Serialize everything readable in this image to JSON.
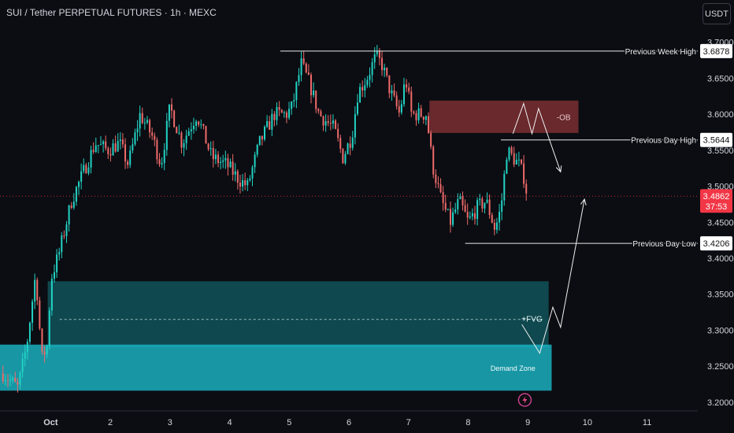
{
  "header": {
    "title": "SUI / Tether PERPETUAL FUTURES · 1h · MEXC",
    "currency": "USDT"
  },
  "colors": {
    "background": "#0b0d12",
    "up": "#22d3c5",
    "down": "#ef6a6a",
    "axis_text": "#d1d4dc",
    "ob_zone": "#7a2f33",
    "fvg_zone": "#147a80",
    "demand_zone": "#1bb5c4",
    "last_price": "#f23645"
  },
  "chart_data": {
    "type": "candlestick",
    "title": "",
    "x_ticks": [
      {
        "label": "Oct",
        "day": 1
      },
      {
        "label": "2",
        "day": 2
      },
      {
        "label": "3",
        "day": 3
      },
      {
        "label": "4",
        "day": 4
      },
      {
        "label": "5",
        "day": 5
      },
      {
        "label": "6",
        "day": 6
      },
      {
        "label": "7",
        "day": 7
      },
      {
        "label": "8",
        "day": 8
      },
      {
        "label": "9",
        "day": 9
      },
      {
        "label": "10",
        "day": 10
      },
      {
        "label": "11",
        "day": 11
      }
    ],
    "y_ticks": [
      "3.7000",
      "3.6500",
      "3.6000",
      "3.5500",
      "3.5000",
      "3.4500",
      "3.4000",
      "3.3500",
      "3.3000",
      "3.2500",
      "3.2000"
    ],
    "ylim": [
      3.19,
      3.715
    ],
    "xlim": [
      0.15,
      11.85
    ],
    "price_path": [
      [
        0.2,
        3.24
      ],
      [
        0.45,
        3.22
      ],
      [
        0.6,
        3.28
      ],
      [
        0.75,
        3.38
      ],
      [
        0.85,
        3.26
      ],
      [
        0.95,
        3.28
      ],
      [
        1.0,
        3.37
      ],
      [
        1.15,
        3.41
      ],
      [
        1.35,
        3.48
      ],
      [
        1.55,
        3.52
      ],
      [
        1.75,
        3.56
      ],
      [
        1.95,
        3.55
      ],
      [
        2.15,
        3.56
      ],
      [
        2.3,
        3.53
      ],
      [
        2.5,
        3.6
      ],
      [
        2.7,
        3.57
      ],
      [
        2.85,
        3.53
      ],
      [
        3.0,
        3.61
      ],
      [
        3.2,
        3.56
      ],
      [
        3.45,
        3.6
      ],
      [
        3.7,
        3.54
      ],
      [
        3.95,
        3.53
      ],
      [
        4.15,
        3.51
      ],
      [
        4.3,
        3.5
      ],
      [
        4.5,
        3.56
      ],
      [
        4.75,
        3.6
      ],
      [
        4.95,
        3.6
      ],
      [
        5.05,
        3.61
      ],
      [
        5.2,
        3.67
      ],
      [
        5.35,
        3.64
      ],
      [
        5.5,
        3.6
      ],
      [
        5.75,
        3.58
      ],
      [
        5.9,
        3.54
      ],
      [
        6.05,
        3.57
      ],
      [
        6.15,
        3.63
      ],
      [
        6.3,
        3.65
      ],
      [
        6.45,
        3.68
      ],
      [
        6.55,
        3.67
      ],
      [
        6.7,
        3.63
      ],
      [
        6.85,
        3.6
      ],
      [
        6.95,
        3.65
      ],
      [
        7.05,
        3.6
      ],
      [
        7.2,
        3.6
      ],
      [
        7.3,
        3.6
      ],
      [
        7.4,
        3.53
      ],
      [
        7.55,
        3.48
      ],
      [
        7.7,
        3.45
      ],
      [
        7.85,
        3.48
      ],
      [
        8.0,
        3.45
      ],
      [
        8.15,
        3.47
      ],
      [
        8.3,
        3.48
      ],
      [
        8.45,
        3.44
      ],
      [
        8.55,
        3.47
      ],
      [
        8.65,
        3.55
      ],
      [
        8.75,
        3.54
      ],
      [
        8.85,
        3.53
      ],
      [
        8.95,
        3.51
      ],
      [
        9.0,
        3.49
      ]
    ],
    "candle_width_days": 0.041,
    "last_price": "3.4862",
    "countdown": "37:53",
    "levels": [
      {
        "name": "Previous Week High",
        "value": 3.6878,
        "label": "3.6878",
        "from_day": 4.85
      },
      {
        "name": "Previous Day High",
        "value": 3.5644,
        "label": "3.5644",
        "from_day": 8.55
      },
      {
        "name": "Previous Day Low",
        "value": 3.4206,
        "label": "3.4206",
        "from_day": 7.95
      }
    ],
    "zones": [
      {
        "name": "-OB",
        "from_day": 7.35,
        "to_day": 9.85,
        "low": 3.574,
        "high": 3.619
      },
      {
        "name": "+FVG",
        "from_day": 0.95,
        "to_day": 9.35,
        "low": 3.276,
        "high": 3.368
      },
      {
        "name": "Demand Zone",
        "from_day": 0.1,
        "to_day": 9.4,
        "low": 3.216,
        "high": 3.28
      }
    ],
    "fvg_midline": 3.315,
    "projections": [
      {
        "points": [
          [
            8.75,
            3.573
          ],
          [
            8.93,
            3.615
          ],
          [
            9.07,
            3.573
          ],
          [
            9.18,
            3.608
          ],
          [
            9.55,
            3.52
          ]
        ]
      },
      {
        "points": [
          [
            8.9,
            3.308
          ],
          [
            9.2,
            3.268
          ],
          [
            9.42,
            3.332
          ],
          [
            9.55,
            3.304
          ],
          [
            9.95,
            3.482
          ]
        ]
      }
    ]
  }
}
